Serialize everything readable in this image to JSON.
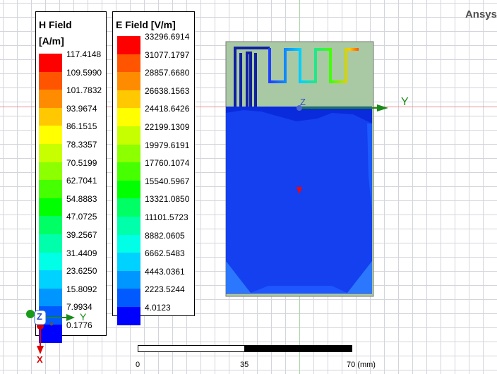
{
  "brand": "Ansys",
  "h_legend": {
    "title_line1": "H Field",
    "title_line2": "[A/m]",
    "labels": [
      "117.4148",
      "109.5990",
      "101.7832",
      "93.9674",
      "86.1515",
      "78.3357",
      "70.5199",
      "62.7041",
      "54.8883",
      "47.0725",
      "39.2567",
      "31.4409",
      "23.6250",
      "15.8092",
      "7.9934",
      "0.1776"
    ]
  },
  "e_legend": {
    "title": "E Field [V/m]",
    "labels": [
      "33296.6914",
      "31077.1797",
      "28857.6680",
      "26638.1563",
      "24418.6426",
      "22199.1309",
      "19979.6191",
      "17760.1074",
      "15540.5967",
      "13321.0850",
      "11101.5723",
      "8882.0605",
      "6662.5483",
      "4443.0361",
      "2223.5244",
      "4.0123"
    ]
  },
  "colors": [
    "#ff0000",
    "#ff5500",
    "#ff8c00",
    "#ffc800",
    "#ffff00",
    "#c8ff00",
    "#8cff00",
    "#46ff00",
    "#00ff00",
    "#00ff64",
    "#00ffaa",
    "#00ffe6",
    "#00d2ff",
    "#0096ff",
    "#005aff",
    "#0000ff"
  ],
  "axis_labels": {
    "y": "Y",
    "z": "Z",
    "x": "X"
  },
  "scale": {
    "tick0": "0",
    "tick1": "35",
    "tick2": "70 (mm)"
  }
}
